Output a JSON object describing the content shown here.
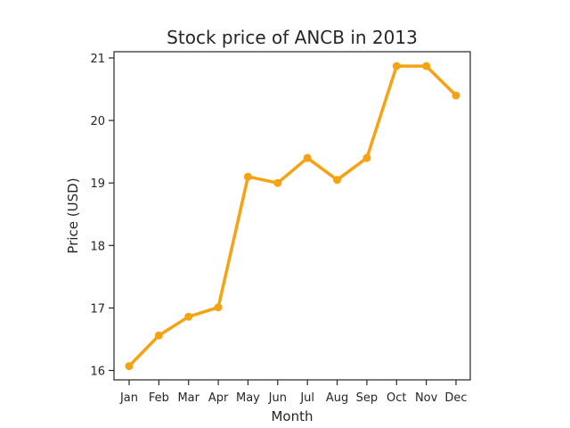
{
  "chart_data": {
    "type": "line",
    "title": "Stock price of ANCB in 2013",
    "xlabel": "Month",
    "ylabel": "Price (USD)",
    "categories": [
      "Jan",
      "Feb",
      "Mar",
      "Apr",
      "May",
      "Jun",
      "Jul",
      "Aug",
      "Sep",
      "Oct",
      "Nov",
      "Dec"
    ],
    "series": [
      {
        "values": [
          16.07,
          16.56,
          16.86,
          17.01,
          19.1,
          19.0,
          19.4,
          19.05,
          19.4,
          20.87,
          20.87,
          20.4
        ]
      }
    ],
    "yticks": [
      16,
      17,
      18,
      19,
      20,
      21
    ],
    "ylim": [
      15.85,
      21.1
    ],
    "grid": false,
    "line_color": "#f5a213"
  }
}
